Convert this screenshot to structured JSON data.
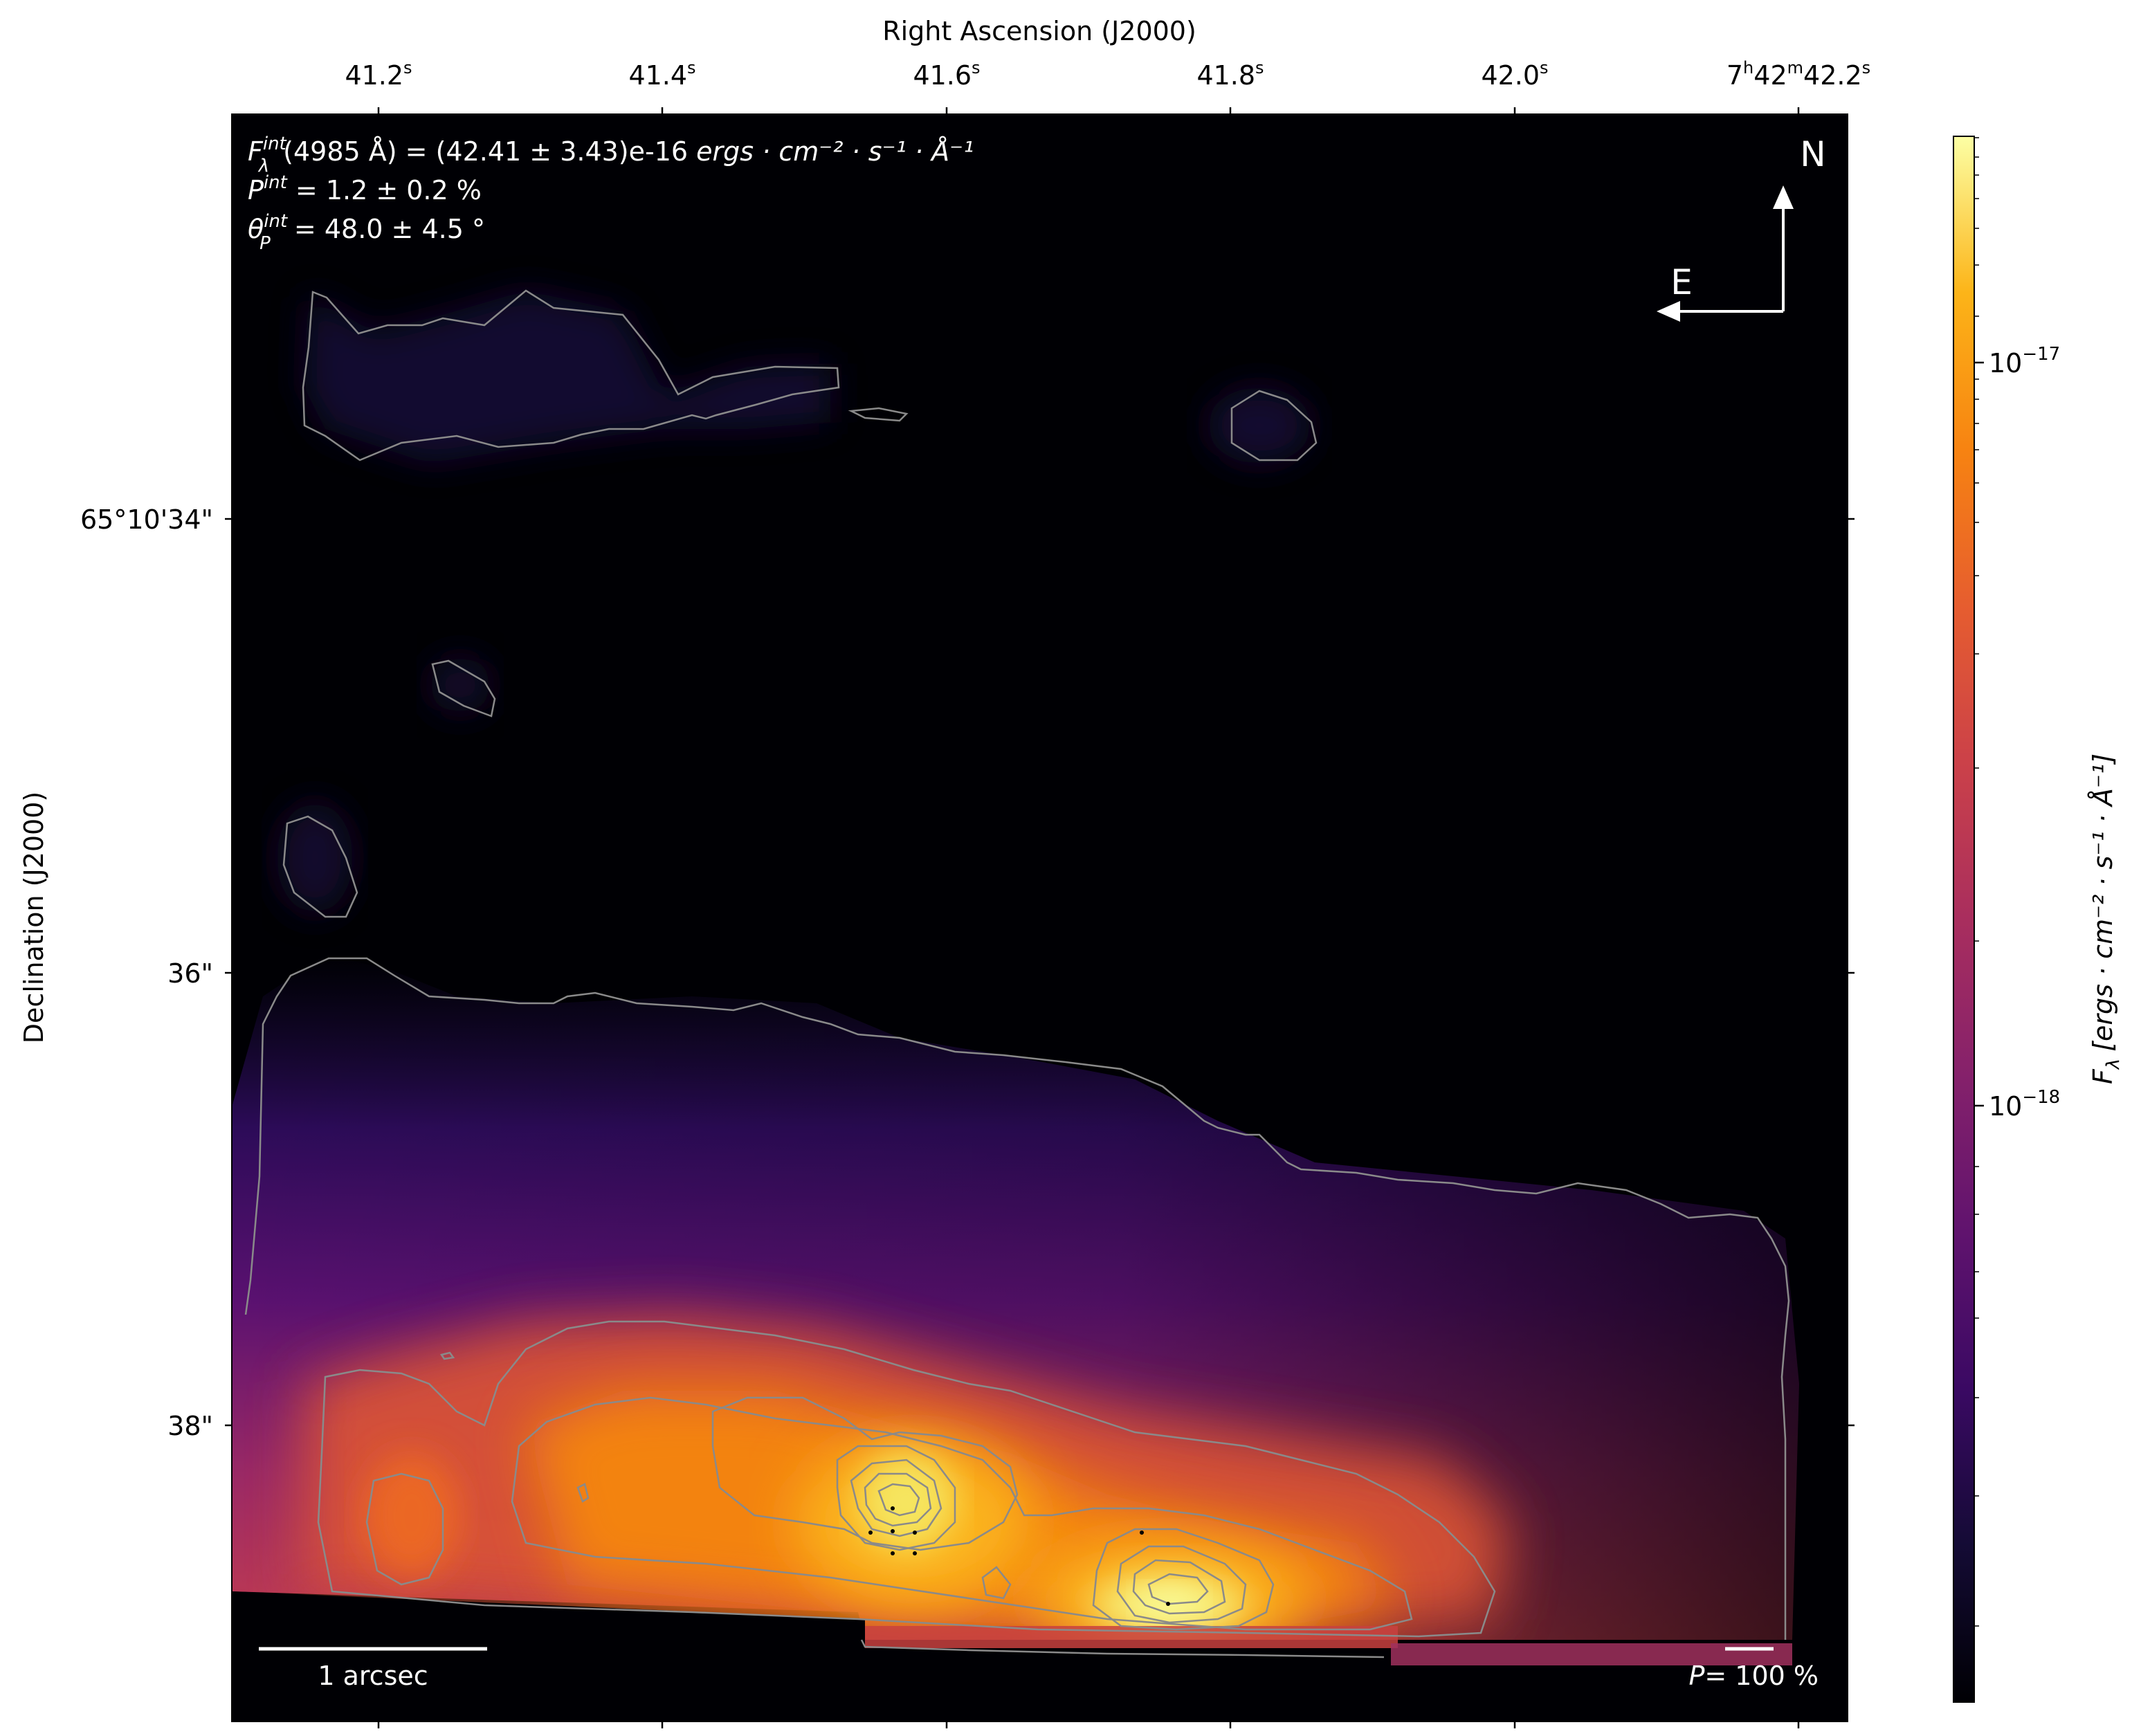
{
  "figure": {
    "x_axis_label": "Right Ascension (J2000)",
    "y_axis_label": "Declination (J2000)",
    "ra_ticks": [
      {
        "label_sec": "41.2",
        "label_prefix": ""
      },
      {
        "label_sec": "41.4",
        "label_prefix": ""
      },
      {
        "label_sec": "41.6",
        "label_prefix": ""
      },
      {
        "label_sec": "41.8",
        "label_prefix": ""
      },
      {
        "label_sec": "42.0",
        "label_prefix": ""
      },
      {
        "label_sec": "42.2",
        "label_prefix": "7h42m"
      }
    ],
    "dec_ticks": [
      "65°10'34\"",
      "36\"",
      "38\""
    ],
    "annotations": {
      "flux_symbol": "F",
      "flux_sup": "int",
      "flux_sub": "λ",
      "flux_text": "(4985 Å) = (42.41 ± 3.43)e-16",
      "flux_units": "ergs · cm⁻² · s⁻¹ · Å⁻¹",
      "pol_symbol": "P",
      "pol_sup": "int",
      "pol_text": " = 1.2 ± 0.2 %",
      "angle_symbol": "θ",
      "angle_sub": "P",
      "angle_sup": "int",
      "angle_text": " = 48.0 ± 4.5 °"
    },
    "compass": {
      "north": "N",
      "east": "E"
    },
    "scalebar_label": "1 arcsec",
    "pol_scale_label_symbol": "P",
    "pol_scale_label_text": "= 100 %",
    "colorbar": {
      "label": "F",
      "label_sub": "λ",
      "label_units": "[ergs · cm⁻² · s⁻¹ · Å⁻¹]",
      "tick_1e17": "10",
      "tick_1e17_exp": "−17",
      "tick_1e18": "10",
      "tick_1e18_exp": "−18",
      "scale": "log",
      "colormap": "inferno"
    },
    "colors": {
      "background": "#000004",
      "contour": "#8a8a8a",
      "annotation": "#ffffff"
    }
  }
}
